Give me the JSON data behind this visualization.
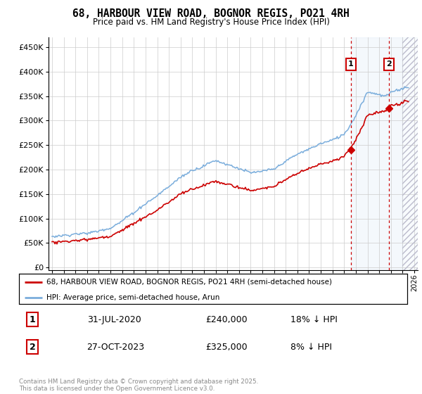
{
  "title": "68, HARBOUR VIEW ROAD, BOGNOR REGIS, PO21 4RH",
  "subtitle": "Price paid vs. HM Land Registry's House Price Index (HPI)",
  "ylabel_ticks": [
    0,
    50000,
    100000,
    150000,
    200000,
    250000,
    300000,
    350000,
    400000,
    450000
  ],
  "ylabel_labels": [
    "£0",
    "£50K",
    "£100K",
    "£150K",
    "£200K",
    "£250K",
    "£300K",
    "£350K",
    "£400K",
    "£450K"
  ],
  "xlim": [
    1994.7,
    2026.3
  ],
  "ylim": [
    -5000,
    470000
  ],
  "point1_x": 2020.58,
  "point1_y": 240000,
  "point2_x": 2023.82,
  "point2_y": 325000,
  "point1_label": "31-JUL-2020",
  "point2_label": "27-OCT-2023",
  "point1_price": "£240,000",
  "point2_price": "£325,000",
  "point1_hpi": "18% ↓ HPI",
  "point2_hpi": "8% ↓ HPI",
  "red_color": "#cc0000",
  "blue_color": "#7aaddc",
  "legend_label1": "68, HARBOUR VIEW ROAD, BOGNOR REGIS, PO21 4RH (semi-detached house)",
  "legend_label2": "HPI: Average price, semi-detached house, Arun",
  "footer": "Contains HM Land Registry data © Crown copyright and database right 2025.\nThis data is licensed under the Open Government Licence v3.0.",
  "future_shade_start": 2025.0,
  "between_shade_start": 2020.58,
  "between_shade_end": 2025.0,
  "grid_color": "#cccccc",
  "hatch_color": "#aaaacc"
}
